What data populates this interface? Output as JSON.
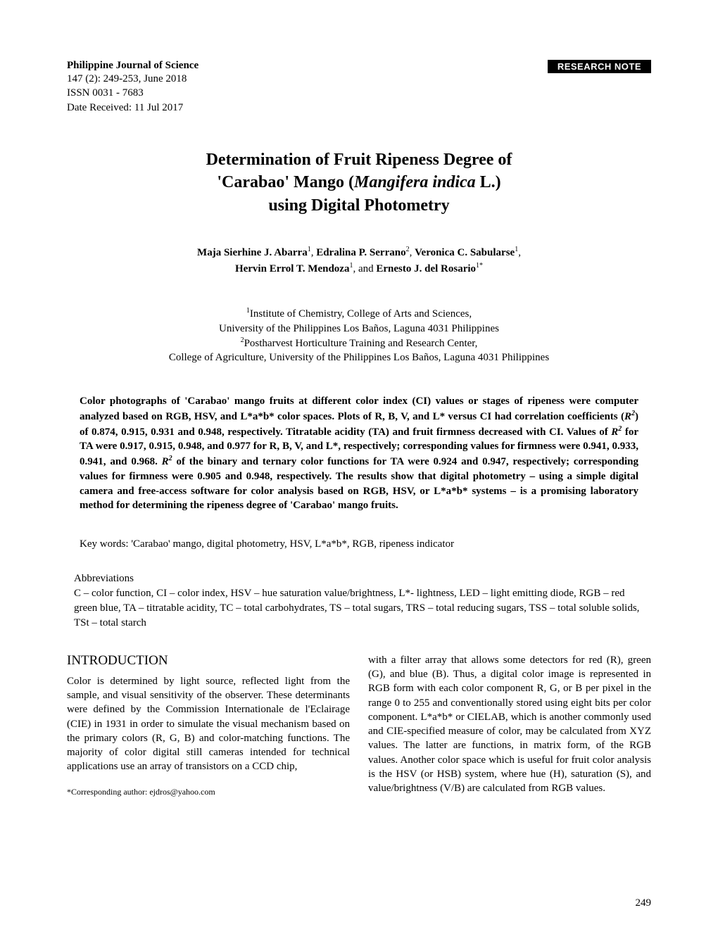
{
  "header": {
    "journal_name": "Philippine Journal of Science",
    "issue": "147 (2): 249-253, June 2018",
    "issn": "ISSN 0031 - 7683",
    "date_received": "Date Received: 11 Jul 2017",
    "research_note": "RESEARCH NOTE"
  },
  "title": {
    "line1": "Determination of Fruit Ripeness Degree of",
    "line2_pre": "'Carabao' Mango (",
    "line2_italic": "Mangifera indica",
    "line2_post": " L.)",
    "line3": "using Digital Photometry"
  },
  "authors": {
    "a1": "Maja Sierhine J. Abarra",
    "a1_sup": "1",
    "a2": "Edralina P. Serrano",
    "a2_sup": "2",
    "a3": "Veronica C. Sabularse",
    "a3_sup": "1",
    "a4": "Hervin Errol T. Mendoza",
    "a4_sup": "1",
    "a5": "Ernesto J. del Rosario",
    "a5_sup": "1*"
  },
  "affiliations": {
    "l1_sup": "1",
    "l1": "Institute of Chemistry, College of Arts and Sciences,",
    "l2": "University of the Philippines Los Baños, Laguna 4031 Philippines",
    "l3_sup": "2",
    "l3": "Postharvest Horticulture Training and Research Center,",
    "l4": "College of Agriculture, University of the Philippines Los Baños, Laguna 4031 Philippines"
  },
  "abstract": {
    "p1": "Color photographs of 'Carabao' mango fruits at different color index (CI) values or stages of ripeness were computer analyzed based on RGB, HSV, and L*a*b* color spaces. Plots of R, B, V, and L* versus CI had correlation coefficients (",
    "r2_1": "R",
    "sup2_1": "2",
    "p2": ") of 0.874, 0.915, 0.931 and 0.948, respectively. Titratable acidity (TA) and fruit firmness decreased with CI. Values of ",
    "r2_2": "R",
    "sup2_2": "2",
    "p3": " for TA were 0.917, 0.915, 0.948, and 0.977 for R, B, V, and L*, respectively; corresponding values for firmness were 0.941, 0.933, 0.941, and 0.968. ",
    "r2_3": "R",
    "sup2_3": "2",
    "p4": " of the binary and ternary color functions for TA were 0.924 and 0.947, respectively; corresponding values for firmness were 0.905 and 0.948, respectively. The results show that digital photometry – using a simple digital camera and free-access software for color analysis based on RGB, HSV, or L*a*b* systems – is a promising laboratory method for determining the ripeness degree of 'Carabao' mango fruits."
  },
  "keywords": "Key words: 'Carabao' mango, digital photometry, HSV, L*a*b*, RGB, ripeness indicator",
  "abbreviations": {
    "heading": "Abbreviations",
    "text": "C – color function, CI – color index, HSV – hue saturation value/brightness, L*- lightness, LED – light emitting diode, RGB – red green blue, TA – titratable acidity, TC – total carbohydrates, TS – total sugars, TRS – total reducing sugars, TSS – total soluble solids, TSt – total starch"
  },
  "intro": {
    "heading": "INTRODUCTION",
    "col1": "Color is determined by light source, reflected light from the sample, and visual sensitivity of the observer. These determinants were defined by the Commission Internationale de l'Eclairage (CIE) in 1931 in order to simulate the visual mechanism based on the primary colors (R, G, B) and color-matching functions. The majority of color digital still cameras intended for technical applications use an array of transistors on a CCD chip,",
    "col2": "with a filter array that allows some detectors for red (R), green (G), and blue (B). Thus, a digital color image is represented in RGB form with each color component R, G, or B per pixel in the range 0 to 255 and conventionally stored using eight bits per color component. L*a*b* or CIELAB, which is another commonly used and CIE-specified measure of color, may be calculated from XYZ values. The latter are functions, in matrix form, of the RGB values. Another color space which is useful for fruit color analysis is the HSV (or HSB) system, where hue (H), saturation (S), and value/brightness (V/B) are calculated from RGB values."
  },
  "corresponding": "*Corresponding author: ejdros@yahoo.com",
  "page_number": "249"
}
